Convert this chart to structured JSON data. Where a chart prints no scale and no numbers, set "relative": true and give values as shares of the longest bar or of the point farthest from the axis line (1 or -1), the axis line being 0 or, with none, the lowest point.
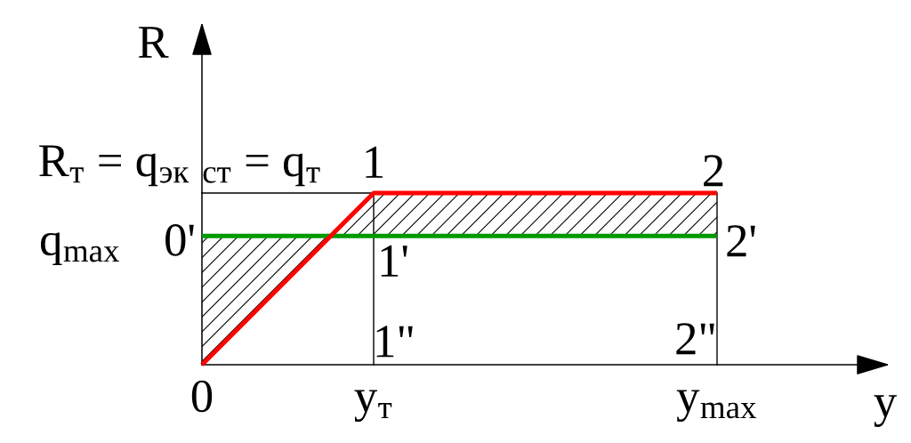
{
  "chart_data": {
    "type": "line",
    "relative": true,
    "xlabel": "y",
    "ylabel": "R",
    "categories": [
      "0",
      null,
      null,
      null,
      "y$_{т}$",
      null,
      null,
      null,
      null,
      null,
      null,
      null,
      "y$_{max}$"
    ],
    "series": [
      {
        "type": "step",
        "color": "#000000",
        "values": [
          1,
          1,
          1,
          1,
          0,
          null,
          null,
          null,
          null,
          null,
          null,
          null,
          null
        ]
      },
      {
        "color": "#009900",
        "values": [
          0.75,
          0.75,
          0.75,
          0.75,
          0.75,
          0.75,
          0.75,
          0.75,
          0.75,
          0.75,
          0.75,
          0.75,
          0.75
        ]
      },
      {
        "color": "#ff0000",
        "values": [
          0,
          0.25,
          0.5,
          0.75,
          1,
          1,
          1,
          1,
          1,
          1,
          1,
          1,
          1
        ],
        "lower": [
          0,
          0.25,
          0.5,
          0.75,
          0.75,
          0.75,
          0.75,
          0.75,
          0.75,
          0.75,
          0.75,
          0.75,
          0.75
        ],
        "upper": [
          0.75,
          0.75,
          0.75,
          0.75,
          1,
          1,
          1,
          1,
          1,
          1,
          1,
          1,
          1
        ]
      }
    ],
    "annotations": [
      "R$_{т}$ = q$_{эк}$ $_{ст}$ = q$_{т}$",
      "q$_{max}$",
      "0'",
      "1",
      "2",
      "1'",
      "2'",
      "1\"",
      "2\""
    ]
  }
}
